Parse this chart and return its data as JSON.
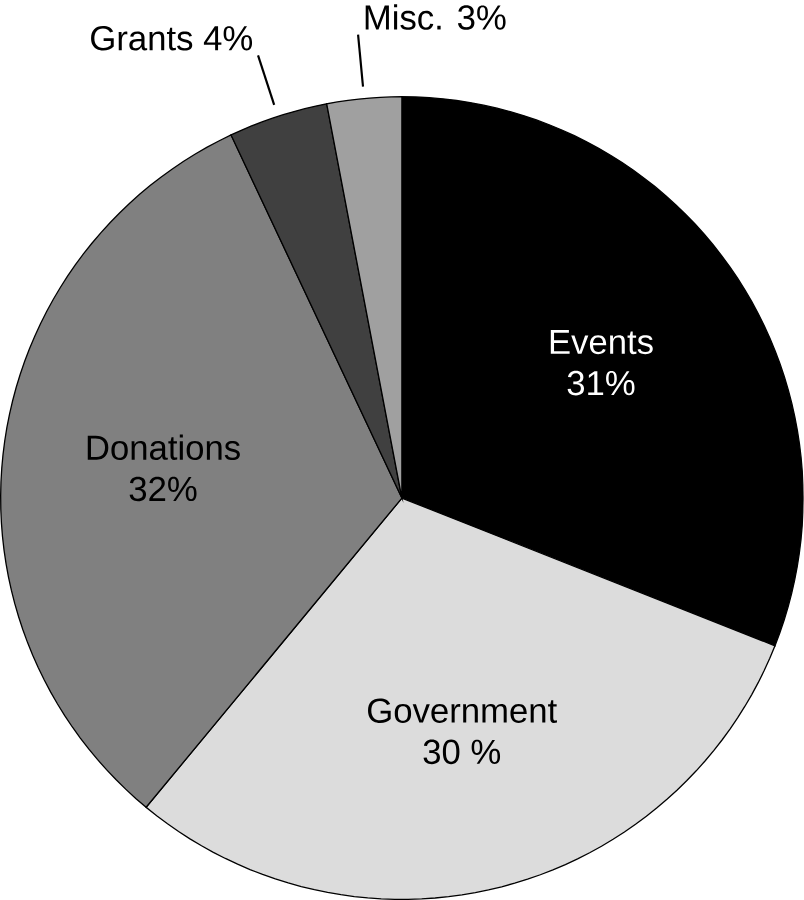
{
  "chart_data": {
    "type": "pie",
    "categories": [
      "Events",
      "Government",
      "Donations",
      "Grants",
      "Misc."
    ],
    "values": [
      31,
      30,
      32,
      4,
      3
    ],
    "value_labels": [
      "31%",
      "30 %",
      "32%",
      "4%",
      "3%"
    ],
    "colors": [
      "#000000",
      "#dcdcdc",
      "#808080",
      "#404040",
      "#a0a0a0"
    ]
  }
}
